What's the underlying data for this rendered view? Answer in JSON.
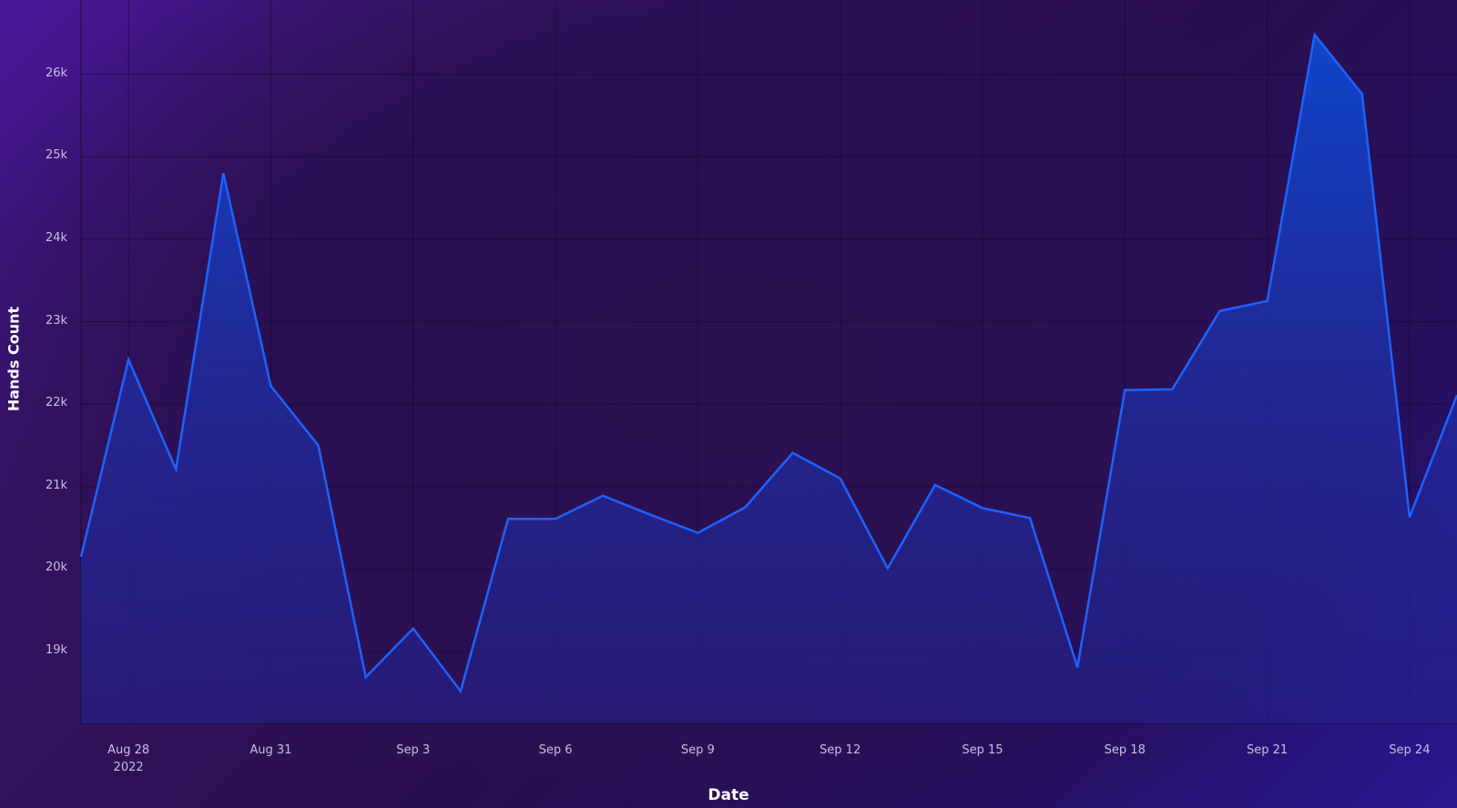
{
  "chart_data": {
    "type": "area",
    "x_label": "Date",
    "y_label": "Hands Count",
    "x": [
      "2022-08-27",
      "2022-08-28",
      "2022-08-29",
      "2022-08-30",
      "2022-08-31",
      "2022-09-01",
      "2022-09-02",
      "2022-09-03",
      "2022-09-04",
      "2022-09-05",
      "2022-09-06",
      "2022-09-07",
      "2022-09-08",
      "2022-09-09",
      "2022-09-10",
      "2022-09-11",
      "2022-09-12",
      "2022-09-13",
      "2022-09-14",
      "2022-09-15",
      "2022-09-16",
      "2022-09-17",
      "2022-09-18",
      "2022-09-19",
      "2022-09-20",
      "2022-09-21",
      "2022-09-22",
      "2022-09-23",
      "2022-09-24",
      "2022-09-25"
    ],
    "series": [
      {
        "name": "Hands Count",
        "color": "#1e62ff",
        "values": [
          20150,
          22540,
          21210,
          24800,
          22220,
          21500,
          18690,
          19280,
          18520,
          20610,
          20610,
          20890,
          20660,
          20440,
          20750,
          21410,
          21100,
          20010,
          21020,
          20740,
          20620,
          18810,
          22170,
          22180,
          23130,
          23250,
          26480,
          25760,
          20630,
          22110
        ]
      }
    ],
    "xlim": [
      "2022-08-27",
      "2022-09-25"
    ],
    "xticks": [
      {
        "value": "2022-08-28",
        "label": "Aug 28\n2022"
      },
      {
        "value": "2022-08-31",
        "label": "Aug 31"
      },
      {
        "value": "2022-09-03",
        "label": "Sep 3"
      },
      {
        "value": "2022-09-06",
        "label": "Sep 6"
      },
      {
        "value": "2022-09-09",
        "label": "Sep 9"
      },
      {
        "value": "2022-09-12",
        "label": "Sep 12"
      },
      {
        "value": "2022-09-15",
        "label": "Sep 15"
      },
      {
        "value": "2022-09-18",
        "label": "Sep 18"
      },
      {
        "value": "2022-09-21",
        "label": "Sep 21"
      },
      {
        "value": "2022-09-24",
        "label": "Sep 24"
      }
    ],
    "ylim": [
      18130,
      26900
    ],
    "yticks": [
      {
        "value": 19000,
        "label": "19k"
      },
      {
        "value": 20000,
        "label": "20k"
      },
      {
        "value": 21000,
        "label": "21k"
      },
      {
        "value": 22000,
        "label": "22k"
      },
      {
        "value": 23000,
        "label": "23k"
      },
      {
        "value": 24000,
        "label": "24k"
      },
      {
        "value": 25000,
        "label": "25k"
      },
      {
        "value": 26000,
        "label": "26k"
      }
    ],
    "grid": true
  }
}
